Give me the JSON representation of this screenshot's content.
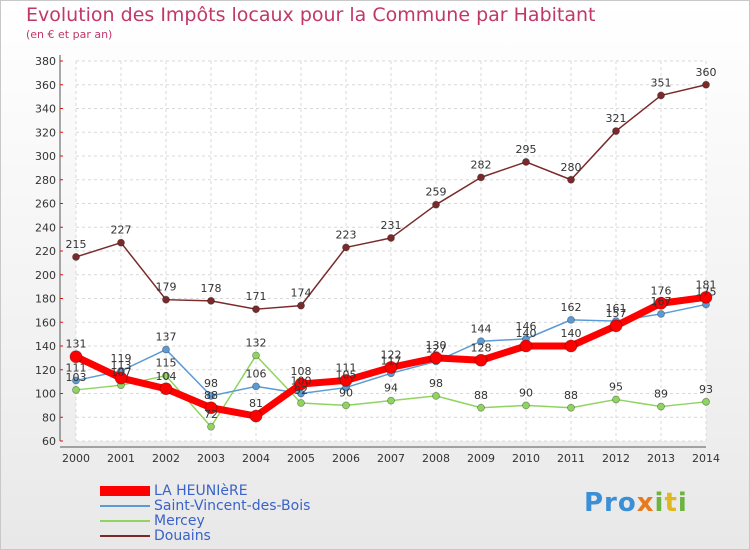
{
  "title": "Evolution des Impôts locaux pour la Commune par Habitant",
  "subtitle": "(en € et par an)",
  "logo": "Proxiti",
  "chart_data": {
    "type": "line",
    "x": [
      2000,
      2001,
      2002,
      2003,
      2004,
      2005,
      2006,
      2007,
      2008,
      2009,
      2010,
      2011,
      2012,
      2013,
      2014
    ],
    "ylim": [
      60,
      380
    ],
    "yticks": [
      60,
      80,
      100,
      120,
      140,
      160,
      180,
      200,
      220,
      240,
      260,
      280,
      300,
      320,
      340,
      360,
      380
    ],
    "grid": true,
    "legend_position": "bottom-left",
    "series": [
      {
        "name": "Douains",
        "color": "#7a2a2a",
        "values": [
          215,
          227,
          179,
          178,
          171,
          174,
          223,
          231,
          259,
          282,
          295,
          280,
          321,
          351,
          360
        ]
      },
      {
        "name": "Mercey",
        "color": "#8fd460",
        "values": [
          103,
          107,
          115,
          72,
          132,
          92,
          90,
          94,
          98,
          88,
          90,
          88,
          95,
          89,
          93
        ]
      },
      {
        "name": "Saint-Vincent-des-Bois",
        "color": "#5b9bd5",
        "values": [
          111,
          119,
          137,
          98,
          106,
          100,
          105,
          117,
          127,
          144,
          146,
          162,
          161,
          167,
          175
        ]
      },
      {
        "name": "LA HEUNIèRE",
        "color": "#ff0000",
        "values": [
          131,
          113,
          104,
          88,
          81,
          108,
          111,
          122,
          130,
          128,
          140,
          140,
          157,
          176,
          181
        ]
      }
    ]
  }
}
